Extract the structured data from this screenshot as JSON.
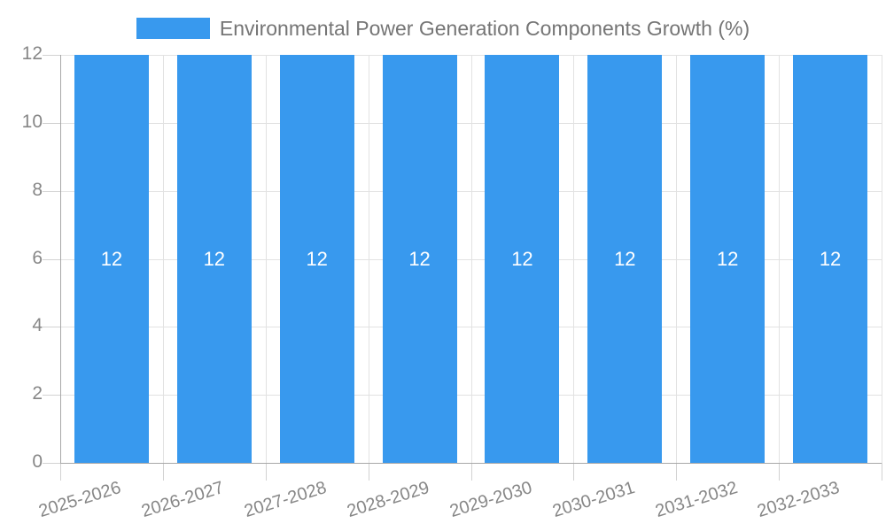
{
  "chart_data": {
    "type": "bar",
    "title": "Environmental Power Generation Components Growth (%)",
    "categories": [
      "2025-2026",
      "2026-2027",
      "2027-2028",
      "2028-2029",
      "2029-2030",
      "2030-2031",
      "2031-2032",
      "2032-2033"
    ],
    "values": [
      12,
      12,
      12,
      12,
      12,
      12,
      12,
      12
    ],
    "bar_value_labels": [
      "12",
      "12",
      "12",
      "12",
      "12",
      "12",
      "12",
      "12"
    ],
    "ytick_labels": [
      "0",
      "2",
      "4",
      "6",
      "8",
      "10",
      "12"
    ],
    "yticks": [
      0,
      2,
      4,
      6,
      8,
      10,
      12
    ],
    "ylim": [
      0,
      12
    ],
    "xlabel": "",
    "ylabel": "",
    "legend_position": "top",
    "grid": true,
    "colors": {
      "bar": "#3899ee",
      "bar_label": "#ffffff",
      "title": "#757575",
      "axis_label": "#878787",
      "grid_line": "#e2e2e2",
      "axis_line": "#a8a8a8",
      "tick_mark": "#d2d2d2"
    }
  }
}
